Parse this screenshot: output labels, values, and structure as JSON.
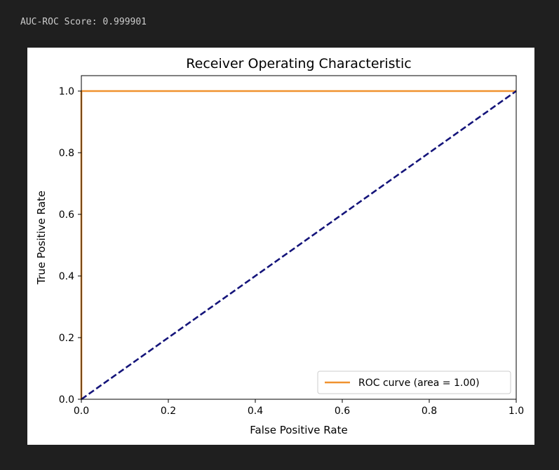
{
  "output": {
    "text": "AUC-ROC Score: 0.999901"
  },
  "chart_data": {
    "type": "line",
    "title": "Receiver Operating Characteristic",
    "xlabel": "False Positive Rate",
    "ylabel": "True Positive Rate",
    "xlim": [
      0.0,
      1.0
    ],
    "ylim": [
      0.0,
      1.05
    ],
    "x_ticks": [
      0.0,
      0.2,
      0.4,
      0.6,
      0.8,
      1.0
    ],
    "y_ticks": [
      0.0,
      0.2,
      0.4,
      0.6,
      0.8,
      1.0
    ],
    "x_tick_labels": [
      "0.0",
      "0.2",
      "0.4",
      "0.6",
      "0.8",
      "1.0"
    ],
    "y_tick_labels": [
      "0.0",
      "0.2",
      "0.4",
      "0.6",
      "0.8",
      "1.0"
    ],
    "grid": false,
    "legend_position": "lower-right",
    "series": [
      {
        "name": "ROC curve (area = 1.00)",
        "color": "#f0922f",
        "style": "solid",
        "x": [
          0.0,
          0.0,
          0.0001,
          1.0
        ],
        "y": [
          0.0,
          0.999,
          1.0,
          1.0
        ]
      },
      {
        "color": "#14147a",
        "style": "dashed",
        "x": [
          0.0,
          1.0
        ],
        "y": [
          0.0,
          1.0
        ]
      }
    ]
  }
}
